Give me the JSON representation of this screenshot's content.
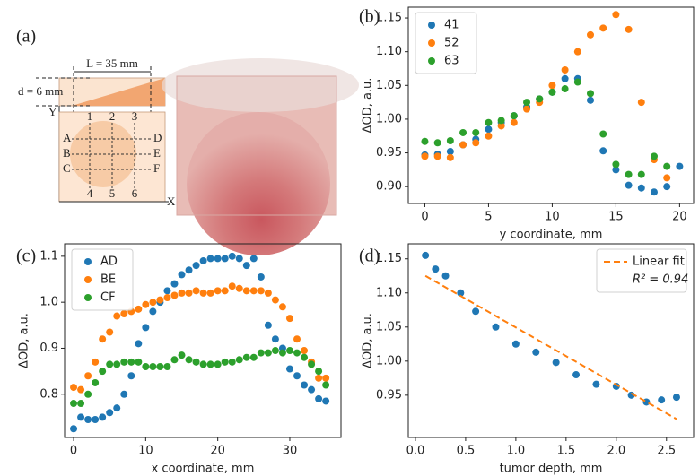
{
  "diagram": {
    "label": "(a)",
    "length_label": "L = 35 mm",
    "depth_label": "d = 6 mm",
    "y_axis": "Y",
    "x_axis": "X",
    "left_points": [
      "A",
      "B",
      "C"
    ],
    "right_points": [
      "D",
      "E",
      "F"
    ],
    "top_points": [
      "1",
      "2",
      "3"
    ],
    "bottom_points": [
      "4",
      "5",
      "6"
    ]
  },
  "chart_data": [
    {
      "type": "scatter",
      "label": "(b)",
      "xlabel": "y coordinate, mm",
      "ylabel": "ΔOD, a.u.",
      "legend": "upper left",
      "x": [
        0,
        1,
        2,
        3,
        4,
        5,
        6,
        7,
        8,
        9,
        10,
        11,
        12,
        13,
        14,
        15,
        16,
        17,
        18,
        19,
        20
      ],
      "series": [
        {
          "name": "41",
          "color": "#1f77b4",
          "values": [
            0.947,
            0.948,
            0.952,
            0.962,
            0.97,
            0.985,
            0.995,
            1.005,
            1.018,
            1.03,
            1.04,
            1.06,
            1.06,
            1.028,
            0.953,
            0.925,
            0.902,
            0.898,
            0.892,
            0.9,
            0.93
          ]
        },
        {
          "name": "52",
          "color": "#ff7f0e",
          "values": [
            0.945,
            0.945,
            0.943,
            0.962,
            0.965,
            0.975,
            0.99,
            0.995,
            1.015,
            1.025,
            1.05,
            1.073,
            1.1,
            1.125,
            1.135,
            1.155,
            1.133,
            1.025,
            0.94,
            0.913,
            null
          ]
        },
        {
          "name": "63",
          "color": "#2ca02c",
          "values": [
            0.967,
            0.965,
            0.968,
            0.98,
            0.98,
            0.995,
            0.998,
            1.005,
            1.025,
            1.03,
            1.04,
            1.045,
            1.055,
            1.038,
            0.978,
            0.933,
            0.918,
            0.918,
            0.945,
            0.93,
            null
          ]
        }
      ],
      "xlim": [
        -1.3,
        21.1
      ],
      "ylim": [
        0.875,
        1.166
      ],
      "xticks": [
        0,
        5,
        10,
        15,
        20
      ],
      "yticks": [
        {
          "value": 0.9,
          "label": "0.90"
        },
        0.95,
        {
          "value": 1,
          "label": "1.00"
        },
        1.05,
        {
          "value": 1.1,
          "label": "1.10"
        },
        1.15
      ]
    },
    {
      "type": "scatter",
      "label": "(c)",
      "xlabel": "x coordinate, mm",
      "ylabel": "ΔOD, a.u.",
      "legend": "upper left",
      "x": [
        0,
        1,
        2,
        3,
        4,
        5,
        6,
        7,
        8,
        9,
        10,
        11,
        12,
        13,
        14,
        15,
        16,
        17,
        18,
        19,
        20,
        21,
        22,
        23,
        24,
        25,
        26,
        27,
        28,
        29,
        30,
        31,
        32,
        33,
        34,
        35
      ],
      "series": [
        {
          "name": "AD",
          "color": "#1f77b4",
          "values": [
            0.725,
            0.75,
            0.745,
            0.745,
            0.75,
            0.76,
            0.77,
            0.8,
            0.84,
            0.91,
            0.945,
            0.98,
            1.0,
            1.025,
            1.04,
            1.06,
            1.07,
            1.08,
            1.09,
            1.095,
            1.095,
            1.095,
            1.1,
            1.095,
            1.08,
            1.095,
            1.055,
            0.95,
            0.92,
            0.9,
            0.855,
            0.84,
            0.82,
            0.81,
            0.79,
            0.785
          ]
        },
        {
          "name": "BE",
          "color": "#ff7f0e",
          "values": [
            0.815,
            0.81,
            0.84,
            0.87,
            0.92,
            0.935,
            0.97,
            0.975,
            0.98,
            0.985,
            0.995,
            1.0,
            1.005,
            1.01,
            1.015,
            1.02,
            1.02,
            1.025,
            1.02,
            1.02,
            1.025,
            1.025,
            1.035,
            1.03,
            1.025,
            1.025,
            1.025,
            1.02,
            1.005,
            0.99,
            0.965,
            0.92,
            0.895,
            0.87,
            0.835,
            0.835
          ]
        },
        {
          "name": "CF",
          "color": "#2ca02c",
          "values": [
            0.78,
            0.78,
            0.8,
            0.825,
            0.85,
            0.865,
            0.865,
            0.87,
            0.87,
            0.87,
            0.86,
            0.86,
            0.86,
            0.86,
            0.875,
            0.885,
            0.875,
            0.87,
            0.865,
            0.865,
            0.865,
            0.87,
            0.87,
            0.875,
            0.88,
            0.88,
            0.89,
            0.89,
            0.895,
            0.89,
            0.895,
            0.89,
            0.88,
            0.865,
            0.85,
            0.82
          ]
        }
      ],
      "xlim": [
        -1.25,
        37.1
      ],
      "ylim": [
        0.706,
        1.127
      ],
      "xticks": [
        0,
        10,
        20,
        30
      ],
      "yticks": [
        0.8,
        0.9,
        {
          "value": 1,
          "label": "1.0"
        },
        1.1
      ]
    },
    {
      "type": "scatter",
      "label": "(d)",
      "xlabel": "tumor depth, mm",
      "ylabel": "ΔOD, a.u.",
      "legend": "upper right",
      "annotation": "R² = 0.94",
      "series": [
        {
          "color": "#1f77b4",
          "x": [
            0.1,
            0.2,
            0.3,
            0.45,
            0.6,
            0.8,
            1.0,
            1.2,
            1.4,
            1.6,
            1.8,
            2.0,
            2.15,
            2.3,
            2.45,
            2.6
          ],
          "values": [
            1.155,
            1.135,
            1.125,
            1.1,
            1.073,
            1.05,
            1.025,
            1.013,
            0.998,
            0.98,
            0.966,
            0.963,
            0.95,
            0.94,
            0.943,
            0.947
          ]
        },
        {
          "name": "Linear fit",
          "color": "#ff7f0e",
          "style": "dashed",
          "x": [
            0.1,
            2.6
          ],
          "values": [
            1.125,
            0.915
          ]
        }
      ],
      "xlim": [
        -0.071,
        2.77
      ],
      "ylim": [
        0.888,
        1.172
      ],
      "xticks": [
        {
          "value": 0,
          "label": "0.0"
        },
        0.5,
        {
          "value": 1,
          "label": "1.0"
        },
        1.5,
        {
          "value": 2,
          "label": "2.0"
        },
        2.5
      ],
      "yticks": [
        0.95,
        {
          "value": 1,
          "label": "1.00"
        },
        1.05,
        {
          "value": 1.1,
          "label": "1.10"
        },
        1.15
      ]
    }
  ]
}
